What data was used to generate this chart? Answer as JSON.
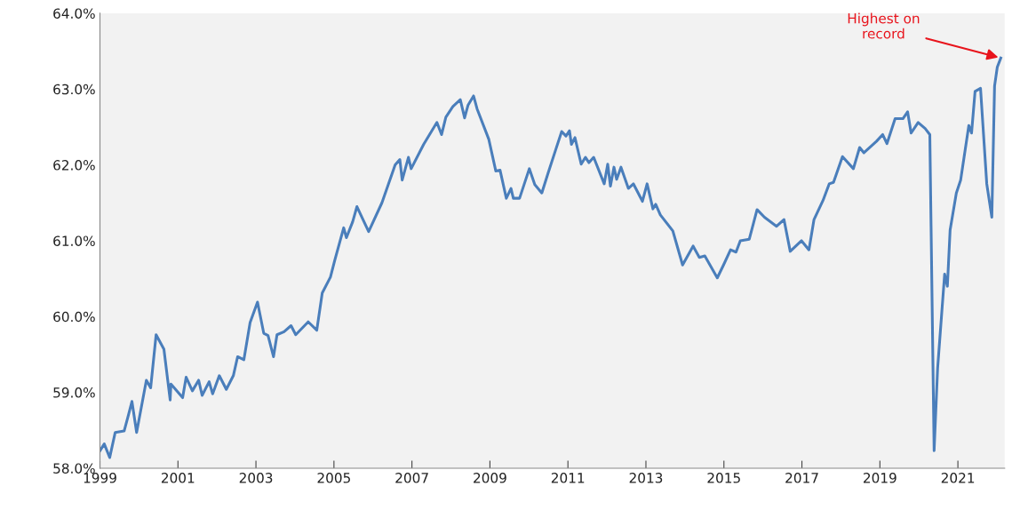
{
  "chart_data": {
    "type": "line",
    "x": [
      1999.0,
      1999.11,
      1999.25,
      1999.39,
      1999.62,
      1999.73,
      1999.82,
      1999.94,
      2000.19,
      2000.3,
      2000.44,
      2000.64,
      2000.8,
      2000.82,
      2001.12,
      2001.21,
      2001.37,
      2001.53,
      2001.62,
      2001.8,
      2001.89,
      2002.06,
      2002.24,
      2002.42,
      2002.53,
      2002.69,
      2002.85,
      2003.04,
      2003.2,
      2003.31,
      2003.45,
      2003.54,
      2003.72,
      2003.9,
      2004.02,
      2004.34,
      2004.56,
      2004.7,
      2004.91,
      2005.02,
      2005.25,
      2005.32,
      2005.48,
      2005.59,
      2005.89,
      2006.23,
      2006.57,
      2006.69,
      2006.75,
      2006.91,
      2006.98,
      2007.3,
      2007.64,
      2007.76,
      2007.87,
      2008.05,
      2008.24,
      2008.35,
      2008.44,
      2008.58,
      2008.67,
      2008.97,
      2009.15,
      2009.26,
      2009.42,
      2009.54,
      2009.6,
      2009.76,
      2010.01,
      2010.15,
      2010.33,
      2010.49,
      2010.68,
      2010.84,
      2010.95,
      2011.04,
      2011.09,
      2011.18,
      2011.34,
      2011.45,
      2011.54,
      2011.66,
      2011.93,
      2012.02,
      2012.09,
      2012.18,
      2012.25,
      2012.36,
      2012.55,
      2012.68,
      2012.91,
      2013.03,
      2013.18,
      2013.25,
      2013.37,
      2013.69,
      2013.94,
      2014.21,
      2014.37,
      2014.51,
      2014.83,
      2014.99,
      2015.17,
      2015.31,
      2015.42,
      2015.65,
      2015.85,
      2016.04,
      2016.35,
      2016.54,
      2016.7,
      2016.99,
      2017.18,
      2017.31,
      2017.54,
      2017.7,
      2017.81,
      2018.04,
      2018.32,
      2018.48,
      2018.59,
      2018.91,
      2019.07,
      2019.18,
      2019.39,
      2019.59,
      2019.71,
      2019.8,
      2019.98,
      2020.16,
      2020.28,
      2020.39,
      2020.48,
      2020.66,
      2020.73,
      2020.8,
      2020.96,
      2021.07,
      2021.28,
      2021.35,
      2021.44,
      2021.58,
      2021.74,
      2021.87,
      2021.94,
      2022.01,
      2022.1
    ],
    "series": [
      {
        "color": "#4a7ebb",
        "values": [
          58.23,
          58.32,
          58.14,
          58.47,
          58.49,
          58.7,
          58.88,
          58.47,
          59.16,
          59.06,
          59.76,
          59.57,
          58.9,
          59.11,
          58.93,
          59.2,
          59.02,
          59.16,
          58.96,
          59.14,
          58.98,
          59.22,
          59.04,
          59.22,
          59.47,
          59.43,
          59.92,
          60.19,
          59.78,
          59.75,
          59.47,
          59.76,
          59.8,
          59.88,
          59.76,
          59.93,
          59.82,
          60.31,
          60.52,
          60.74,
          61.17,
          61.04,
          61.25,
          61.45,
          61.12,
          61.5,
          62.0,
          62.07,
          61.8,
          62.1,
          61.95,
          62.27,
          62.56,
          62.4,
          62.63,
          62.77,
          62.86,
          62.62,
          62.79,
          62.91,
          62.74,
          62.34,
          61.92,
          61.93,
          61.56,
          61.69,
          61.56,
          61.56,
          61.95,
          61.74,
          61.63,
          61.89,
          62.19,
          62.44,
          62.38,
          62.45,
          62.27,
          62.36,
          62.01,
          62.1,
          62.03,
          62.1,
          61.75,
          62.01,
          61.72,
          61.97,
          61.81,
          61.97,
          61.69,
          61.75,
          61.52,
          61.75,
          61.42,
          61.48,
          61.34,
          61.13,
          60.68,
          60.93,
          60.78,
          60.8,
          60.51,
          60.68,
          60.88,
          60.85,
          61.0,
          61.02,
          61.41,
          61.31,
          61.19,
          61.28,
          60.86,
          61.0,
          60.88,
          61.28,
          61.53,
          61.75,
          61.77,
          62.11,
          61.95,
          62.23,
          62.16,
          62.31,
          62.4,
          62.28,
          62.61,
          62.61,
          62.7,
          62.42,
          62.56,
          62.48,
          62.4,
          58.23,
          59.32,
          60.56,
          60.4,
          61.14,
          61.63,
          61.8,
          62.52,
          62.42,
          62.97,
          63.01,
          61.75,
          61.31,
          63.04,
          63.29,
          63.41
        ]
      }
    ],
    "xlim": [
      1999,
      2022.2
    ],
    "xticks": [
      1999,
      2001,
      2003,
      2005,
      2007,
      2009,
      2011,
      2013,
      2015,
      2017,
      2019,
      2021
    ],
    "ylim": [
      58,
      64
    ],
    "yticks": [
      {
        "value": 58,
        "label": "58.0%"
      },
      {
        "value": 59,
        "label": "59.0%"
      },
      {
        "value": 60,
        "label": "60.0%"
      },
      {
        "value": 61,
        "label": "61.0%"
      },
      {
        "value": 62,
        "label": "62.0%"
      },
      {
        "value": 63,
        "label": "63.0%"
      },
      {
        "value": 64,
        "label": "64.0%"
      }
    ],
    "annotations": [
      {
        "text": "Highest on\nrecord",
        "x": 2022.1,
        "y": 63.41
      }
    ],
    "grid": false,
    "legend": false,
    "marker": "none",
    "line_style": "solid"
  }
}
